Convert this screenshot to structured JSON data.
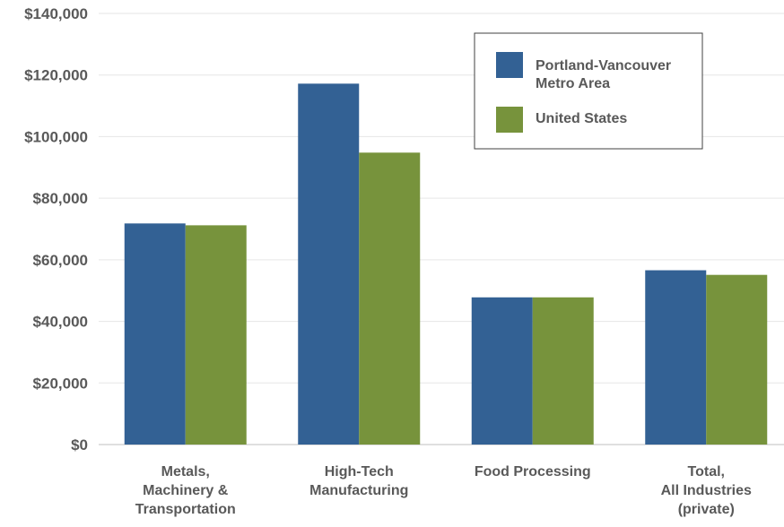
{
  "chart_data": {
    "type": "bar",
    "categories": [
      [
        "Metals,",
        "Machinery &",
        "Transportation"
      ],
      [
        "High-Tech",
        "Manufacturing"
      ],
      [
        "Food Processing"
      ],
      [
        "Total,",
        "All Industries",
        "(private)"
      ]
    ],
    "series": [
      {
        "name": [
          "Portland-Vancouver",
          "Metro Area"
        ],
        "values": [
          71800,
          117200,
          47800,
          56600
        ],
        "color": "#336194"
      },
      {
        "name": [
          "United States"
        ],
        "values": [
          71200,
          94800,
          47800,
          55100
        ],
        "color": "#77933c"
      }
    ],
    "yticks": [
      "$0",
      "$20,000",
      "$40,000",
      "$60,000",
      "$80,000",
      "$100,000",
      "$120,000",
      "$140,000"
    ],
    "ylim": [
      0,
      140000
    ],
    "grid": true,
    "legend_position": "top-right",
    "title": "",
    "xlabel": "",
    "ylabel": ""
  }
}
